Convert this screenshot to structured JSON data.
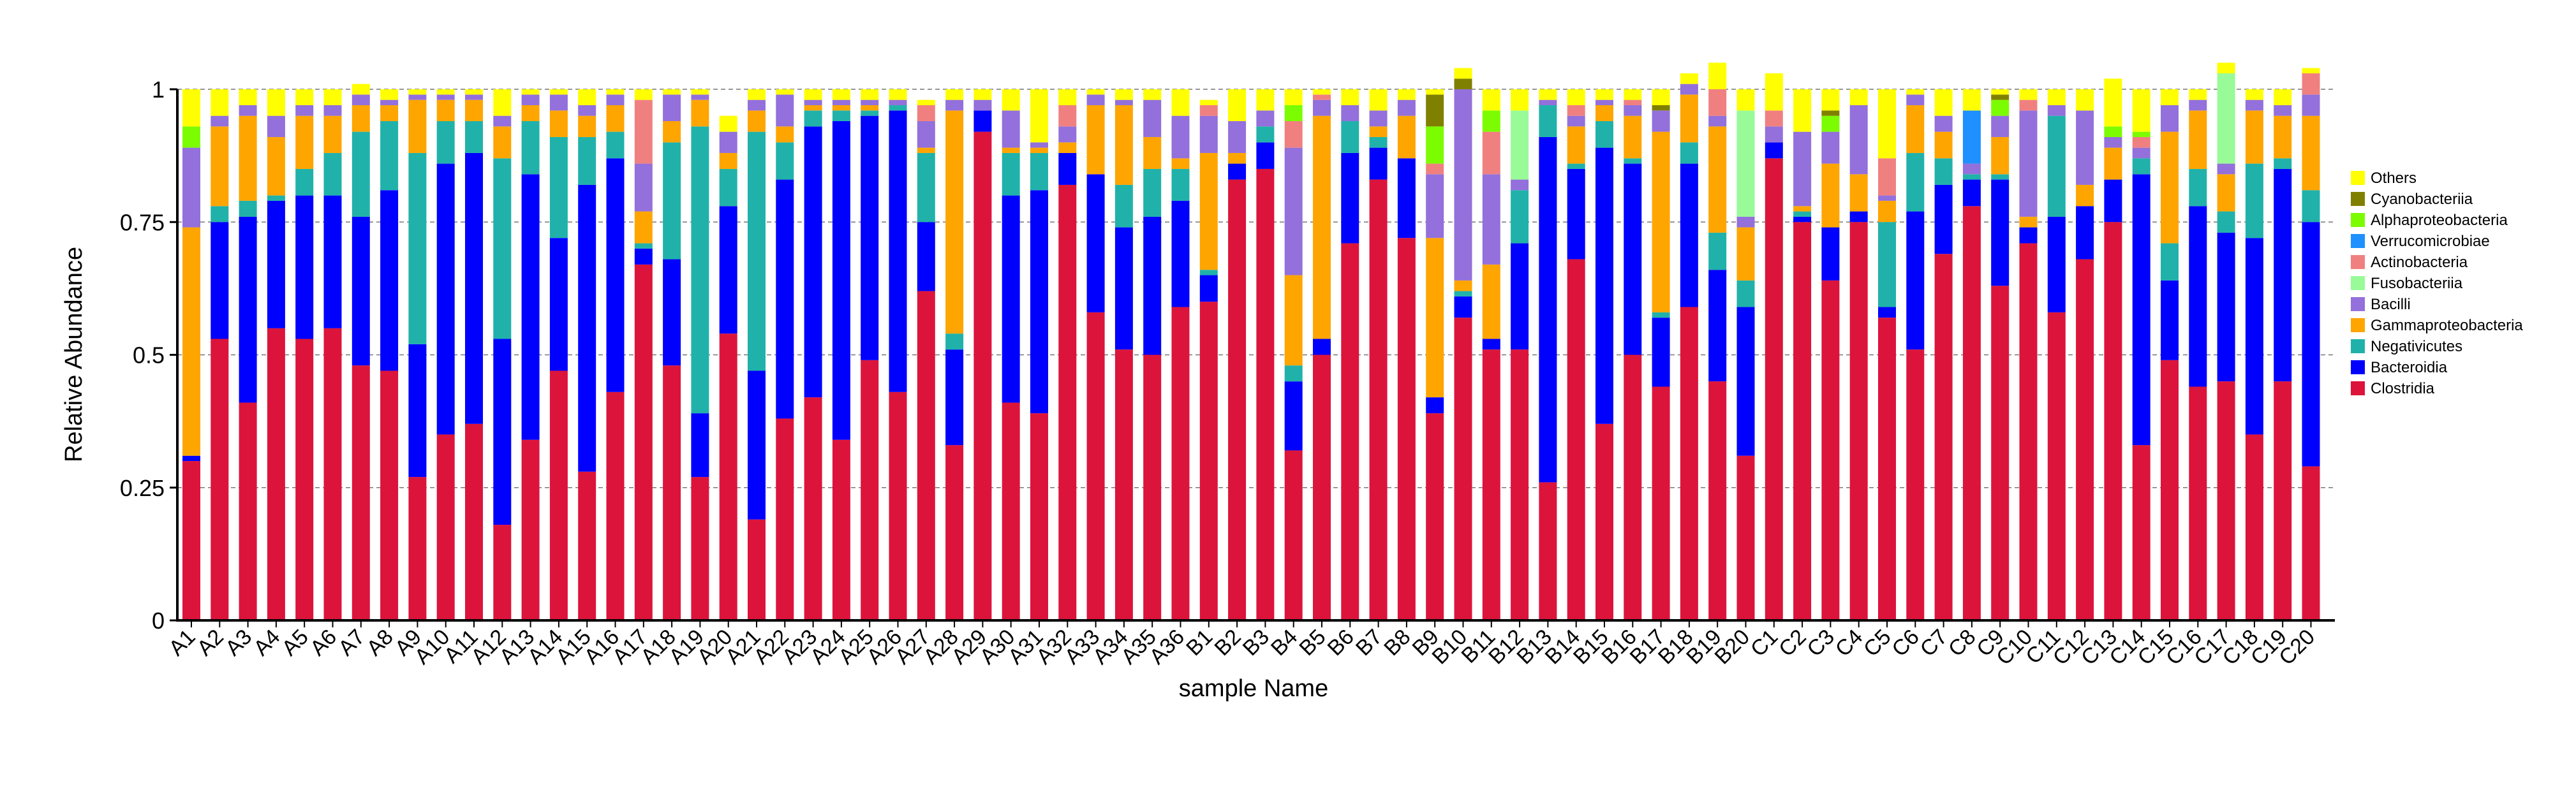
{
  "chart_data": {
    "type": "bar",
    "stacked": true,
    "xlabel": "sample Name",
    "ylabel": "Relative Abundance",
    "ylim": [
      0,
      1
    ],
    "yticks": [
      "0",
      "0.25",
      "0.5",
      "0.75",
      "1"
    ],
    "grid": "horizontal dashed",
    "legend_position": "right",
    "categories": [
      "A1",
      "A2",
      "A3",
      "A4",
      "A5",
      "A6",
      "A7",
      "A8",
      "A9",
      "A10",
      "A11",
      "A12",
      "A13",
      "A14",
      "A15",
      "A16",
      "A17",
      "A18",
      "A19",
      "A20",
      "A21",
      "A22",
      "A23",
      "A24",
      "A25",
      "A26",
      "A27",
      "A28",
      "A29",
      "A30",
      "A31",
      "A32",
      "A33",
      "A34",
      "A35",
      "A36",
      "B1",
      "B2",
      "B3",
      "B4",
      "B5",
      "B6",
      "B7",
      "B8",
      "B9",
      "B10",
      "B11",
      "B12",
      "B13",
      "B14",
      "B15",
      "B16",
      "B17",
      "B18",
      "B19",
      "B20",
      "C1",
      "C2",
      "C3",
      "C4",
      "C5",
      "C6",
      "C7",
      "C8",
      "C9",
      "C10",
      "C11",
      "C12",
      "C13",
      "C14",
      "C15",
      "C16",
      "C17",
      "C18",
      "C19",
      "C20"
    ],
    "series": [
      {
        "name": "Clostridia",
        "color": "#DC143C",
        "values": [
          0.3,
          0.53,
          0.41,
          0.55,
          0.53,
          0.55,
          0.48,
          0.47,
          0.27,
          0.35,
          0.37,
          0.18,
          0.34,
          0.47,
          0.28,
          0.43,
          0.67,
          0.48,
          0.27,
          0.54,
          0.19,
          0.38,
          0.42,
          0.34,
          0.49,
          0.43,
          0.62,
          0.33,
          0.92,
          0.41,
          0.39,
          0.82,
          0.58,
          0.51,
          0.5,
          0.59,
          0.6,
          0.83,
          0.85,
          0.32,
          0.5,
          0.71,
          0.83,
          0.72,
          0.39,
          0.57,
          0.51,
          0.51,
          0.26,
          0.68,
          0.37,
          0.5,
          0.44,
          0.59,
          0.45,
          0.31,
          0.87,
          0.75,
          0.64,
          0.75,
          0.57,
          0.51,
          0.69,
          0.78,
          0.63,
          0.71,
          0.58,
          0.68,
          0.75,
          0.33,
          0.49,
          0.44,
          0.45,
          0.35,
          0.45,
          0.29
        ]
      },
      {
        "name": "Bacteroidia",
        "color": "#0000FF",
        "values": [
          0.01,
          0.22,
          0.35,
          0.24,
          0.27,
          0.25,
          0.28,
          0.34,
          0.25,
          0.51,
          0.51,
          0.35,
          0.5,
          0.25,
          0.54,
          0.44,
          0.03,
          0.2,
          0.12,
          0.24,
          0.28,
          0.45,
          0.51,
          0.6,
          0.46,
          0.53,
          0.13,
          0.18,
          0.04,
          0.39,
          0.42,
          0.06,
          0.26,
          0.23,
          0.26,
          0.2,
          0.05,
          0.03,
          0.05,
          0.13,
          0.03,
          0.17,
          0.06,
          0.15,
          0.03,
          0.04,
          0.02,
          0.2,
          0.65,
          0.17,
          0.52,
          0.36,
          0.13,
          0.27,
          0.21,
          0.28,
          0.03,
          0.01,
          0.1,
          0.02,
          0.02,
          0.26,
          0.13,
          0.05,
          0.2,
          0.03,
          0.18,
          0.1,
          0.08,
          0.51,
          0.15,
          0.34,
          0.28,
          0.37,
          0.4,
          0.46
        ]
      },
      {
        "name": "Negativicutes",
        "color": "#20B2AA",
        "values": [
          0,
          0.03,
          0.03,
          0.01,
          0.05,
          0.08,
          0.16,
          0.13,
          0.36,
          0.08,
          0.06,
          0.34,
          0.1,
          0.19,
          0.09,
          0.05,
          0.01,
          0.22,
          0.54,
          0.07,
          0.45,
          0.07,
          0.03,
          0.02,
          0.01,
          0.01,
          0.13,
          0.03,
          0,
          0.08,
          0.07,
          0,
          0,
          0.08,
          0.09,
          0.06,
          0.01,
          0,
          0.03,
          0.03,
          0,
          0.06,
          0.02,
          0,
          0,
          0.01,
          0,
          0.1,
          0.06,
          0.01,
          0.05,
          0.01,
          0.01,
          0.04,
          0.07,
          0.05,
          0,
          0.01,
          0,
          0,
          0.16,
          0.11,
          0.05,
          0.01,
          0.01,
          0,
          0.19,
          0,
          0,
          0.03,
          0.07,
          0.07,
          0.04,
          0.14,
          0.02,
          0.06
        ]
      },
      {
        "name": "Gammaproteobacteria",
        "color": "#FFA500",
        "values": [
          0.43,
          0.15,
          0.16,
          0.11,
          0.1,
          0.07,
          0.05,
          0.03,
          0.1,
          0.04,
          0.04,
          0.06,
          0.03,
          0.05,
          0.04,
          0.05,
          0.06,
          0.04,
          0.05,
          0.03,
          0.04,
          0.03,
          0.01,
          0.01,
          0.01,
          0,
          0.01,
          0.42,
          0,
          0.01,
          0.01,
          0.02,
          0.13,
          0.15,
          0.06,
          0.02,
          0.22,
          0.02,
          0,
          0.17,
          0.42,
          0,
          0.02,
          0.08,
          0.3,
          0.02,
          0.14,
          0,
          0,
          0.07,
          0.03,
          0.08,
          0.34,
          0.09,
          0.2,
          0.1,
          0,
          0.01,
          0.12,
          0.07,
          0.04,
          0.09,
          0.05,
          0,
          0.07,
          0.02,
          0,
          0.04,
          0.06,
          0,
          0.21,
          0.11,
          0.07,
          0.1,
          0.08,
          0.14
        ]
      },
      {
        "name": "Bacilli",
        "color": "#9370DB",
        "values": [
          0.15,
          0.02,
          0.02,
          0.04,
          0.02,
          0.02,
          0.02,
          0.01,
          0.01,
          0.01,
          0.01,
          0.02,
          0.02,
          0.03,
          0.02,
          0.02,
          0.09,
          0.05,
          0.01,
          0.04,
          0.02,
          0.06,
          0.01,
          0.01,
          0.01,
          0.01,
          0.05,
          0.02,
          0.02,
          0.07,
          0.01,
          0.03,
          0.02,
          0.01,
          0.07,
          0.08,
          0.07,
          0.06,
          0.03,
          0.24,
          0.03,
          0.03,
          0.03,
          0.03,
          0.12,
          0.36,
          0.17,
          0.02,
          0.01,
          0.02,
          0.01,
          0.02,
          0.04,
          0.02,
          0.02,
          0.02,
          0.03,
          0.14,
          0.06,
          0.13,
          0.01,
          0.02,
          0.03,
          0.02,
          0.04,
          0.2,
          0.02,
          0.14,
          0.02,
          0.02,
          0.05,
          0.02,
          0.02,
          0.02,
          0.02,
          0.04
        ]
      },
      {
        "name": "Fusobacteriia",
        "color": "#98FB98",
        "values": [
          0,
          0,
          0,
          0,
          0,
          0,
          0,
          0,
          0,
          0,
          0,
          0,
          0,
          0,
          0,
          0,
          0,
          0,
          0,
          0,
          0,
          0,
          0,
          0,
          0,
          0,
          0,
          0,
          0,
          0,
          0,
          0,
          0,
          0,
          0,
          0,
          0,
          0,
          0,
          0,
          0,
          0,
          0,
          0,
          0,
          0,
          0,
          0.13,
          0,
          0,
          0,
          0,
          0,
          0,
          0,
          0.2,
          0,
          0,
          0,
          0,
          0,
          0,
          0,
          0,
          0,
          0,
          0,
          0,
          0,
          0,
          0,
          0,
          0.17,
          0,
          0,
          0
        ]
      },
      {
        "name": "Actinobacteria",
        "color": "#F08080",
        "values": [
          0,
          0,
          0,
          0,
          0,
          0,
          0,
          0,
          0,
          0,
          0,
          0,
          0,
          0,
          0,
          0,
          0.12,
          0,
          0,
          0,
          0,
          0,
          0,
          0,
          0,
          0,
          0.03,
          0,
          0,
          0,
          0,
          0.04,
          0,
          0,
          0,
          0,
          0.02,
          0,
          0,
          0.05,
          0.01,
          0,
          0,
          0,
          0.02,
          0,
          0.08,
          0,
          0,
          0.02,
          0,
          0.01,
          0,
          0,
          0.05,
          0,
          0.03,
          0,
          0,
          0,
          0.07,
          0,
          0,
          0,
          0,
          0.02,
          0,
          0,
          0,
          0.02,
          0,
          0,
          0,
          0,
          0,
          0.04
        ]
      },
      {
        "name": "Verrucomicrobiae",
        "color": "#1E90FF",
        "values": [
          0,
          0,
          0,
          0,
          0,
          0,
          0,
          0,
          0,
          0,
          0,
          0,
          0,
          0,
          0,
          0,
          0,
          0,
          0,
          0,
          0,
          0,
          0,
          0,
          0,
          0,
          0,
          0,
          0,
          0,
          0,
          0,
          0,
          0,
          0,
          0,
          0,
          0,
          0,
          0,
          0,
          0,
          0,
          0,
          0,
          0,
          0,
          0,
          0,
          0,
          0,
          0,
          0,
          0,
          0,
          0,
          0,
          0,
          0,
          0,
          0,
          0,
          0,
          0.1,
          0,
          0,
          0,
          0,
          0,
          0,
          0,
          0,
          0,
          0,
          0,
          0
        ]
      },
      {
        "name": "Alphaproteobacteria",
        "color": "#7CFC00",
        "values": [
          0.04,
          0,
          0,
          0,
          0,
          0,
          0,
          0,
          0,
          0,
          0,
          0,
          0,
          0,
          0,
          0,
          0,
          0,
          0,
          0,
          0,
          0,
          0,
          0,
          0,
          0,
          0,
          0,
          0,
          0,
          0,
          0,
          0,
          0,
          0,
          0,
          0,
          0,
          0,
          0.03,
          0,
          0,
          0,
          0,
          0.07,
          0,
          0.04,
          0,
          0,
          0,
          0,
          0,
          0,
          0,
          0,
          0,
          0,
          0,
          0.03,
          0,
          0,
          0,
          0,
          0,
          0.03,
          0,
          0,
          0,
          0.02,
          0.01,
          0,
          0,
          0,
          0,
          0,
          0
        ]
      },
      {
        "name": "Cyanobacteriia",
        "color": "#808000",
        "values": [
          0,
          0,
          0,
          0,
          0,
          0,
          0,
          0,
          0,
          0,
          0,
          0,
          0,
          0,
          0,
          0,
          0,
          0,
          0,
          0,
          0,
          0,
          0,
          0,
          0,
          0,
          0,
          0,
          0,
          0,
          0,
          0,
          0,
          0,
          0,
          0,
          0,
          0,
          0,
          0,
          0,
          0,
          0,
          0,
          0.06,
          0.02,
          0,
          0,
          0,
          0,
          0,
          0,
          0.01,
          0,
          0,
          0,
          0,
          0,
          0.01,
          0,
          0,
          0,
          0,
          0,
          0.01,
          0,
          0,
          0,
          0,
          0,
          0,
          0,
          0,
          0,
          0,
          0
        ]
      },
      {
        "name": "Others",
        "color": "#FFFF00",
        "values": [
          0.07,
          0.05,
          0.03,
          0.05,
          0.03,
          0.03,
          0.02,
          0.02,
          0.01,
          0.01,
          0.01,
          0.05,
          0.01,
          0.01,
          0.03,
          0.01,
          0.02,
          0.01,
          0.01,
          0.03,
          0.02,
          0.01,
          0.02,
          0.02,
          0.02,
          0.02,
          0.01,
          0.02,
          0.02,
          0.04,
          0.1,
          0.03,
          0.01,
          0.02,
          0.02,
          0.05,
          0.01,
          0.06,
          0.04,
          0.03,
          0.01,
          0.03,
          0.04,
          0.02,
          0.01,
          0.02,
          0.04,
          0.04,
          0.02,
          0.03,
          0.02,
          0.02,
          0.03,
          0.02,
          0.05,
          0.04,
          0.07,
          0.08,
          0.04,
          0.03,
          0.13,
          0.01,
          0.05,
          0.04,
          0.01,
          0.02,
          0.03,
          0.04,
          0.09,
          0.08,
          0.03,
          0.02,
          0.02,
          0.02,
          0.03,
          0.01
        ]
      }
    ]
  }
}
